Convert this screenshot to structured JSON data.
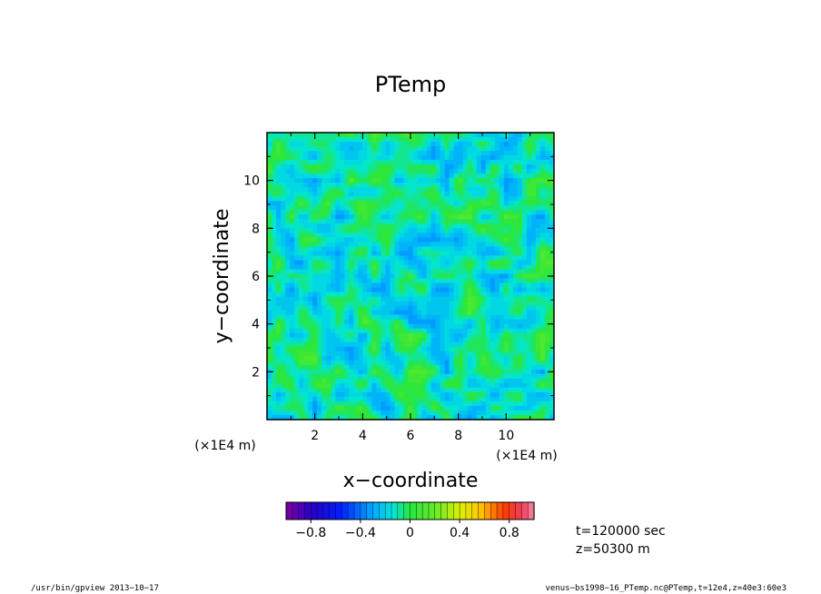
{
  "chart_data": {
    "type": "heatmap",
    "title": "PTemp",
    "xlabel": "x−coordinate",
    "ylabel": "y−coordinate",
    "x_unit": "(×1E4 m)",
    "y_unit": "(×1E4 m)",
    "xlim": [
      0,
      12
    ],
    "ylim": [
      0,
      12
    ],
    "x_ticks": [
      "2",
      "4",
      "6",
      "8",
      "10"
    ],
    "y_ticks": [
      "2",
      "4",
      "6",
      "8",
      "10"
    ],
    "x_tick_values": [
      2,
      4,
      6,
      8,
      10
    ],
    "y_tick_values": [
      2,
      4,
      6,
      8,
      10
    ],
    "colorbar": {
      "range": [
        -1.0,
        1.0
      ],
      "levels": 40,
      "tick_labels": [
        "−0.8",
        "−0.4",
        "0",
        "0.4",
        "0.8"
      ],
      "tick_values": [
        -0.8,
        -0.4,
        0,
        0.4,
        0.8
      ]
    },
    "field_description_value_range": [
      -0.35,
      0.15
    ],
    "annotations": [
      "t=120000 sec",
      "z=50300  m"
    ]
  },
  "footer": {
    "left": "/usr/bin/gpview   2013−10−17",
    "right": "venus−bs1998−16_PTemp.nc@PTemp,t=12e4,z=40e3:60e3"
  }
}
